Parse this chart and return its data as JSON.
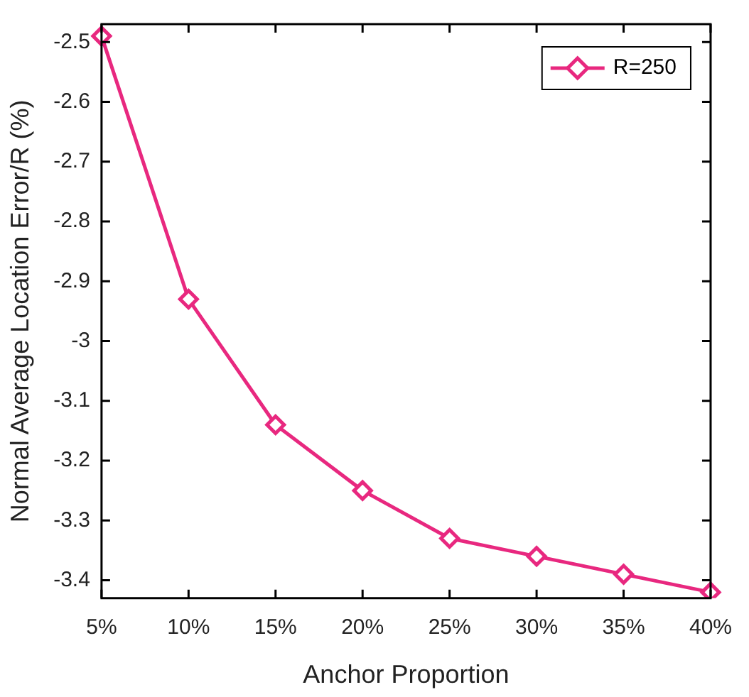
{
  "chart_data": {
    "type": "line",
    "xlabel": "Anchor Proportion",
    "ylabel": "Normal Average Location Error/R (%)",
    "categories": [
      "5%",
      "10%",
      "15%",
      "20%",
      "25%",
      "30%",
      "35%",
      "40%"
    ],
    "series": [
      {
        "name": "R=250",
        "color": "#e8287f",
        "values": [
          -2.49,
          -2.93,
          -3.14,
          -3.25,
          -3.33,
          -3.36,
          -3.39,
          -3.42
        ]
      }
    ],
    "ylim": [
      -3.43,
      -2.47
    ],
    "yticks": [
      -2.5,
      -2.6,
      -2.7,
      -2.8,
      -2.9,
      -3,
      -3.1,
      -3.2,
      -3.3,
      -3.4
    ],
    "legend": "top right",
    "marker": "diamond",
    "line_style": "solid",
    "grid": false
  }
}
